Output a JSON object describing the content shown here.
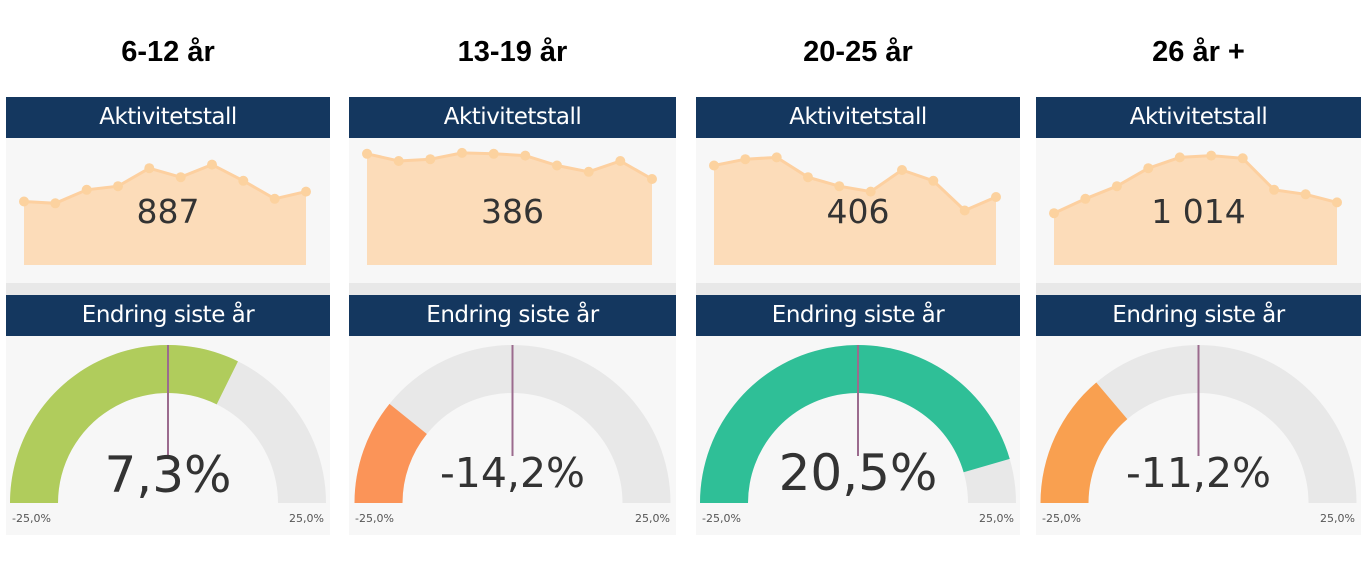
{
  "chart_data": [
    {
      "type": "gauge",
      "group_label": "6-12 år",
      "spark_title": "Aktivitetstall",
      "spark_value": "887",
      "spark_series": [
        0.35,
        0.33,
        0.48,
        0.52,
        0.72,
        0.62,
        0.76,
        0.58,
        0.38,
        0.46
      ],
      "gauge_title": "Endring siste år",
      "gauge_value": 7.3,
      "gauge_label": "7,3%",
      "gauge_min_label": "-25,0%",
      "gauge_max_label": "25,0%",
      "gauge_min": -25,
      "gauge_max": 25,
      "fill_color": "#b0cc5c"
    },
    {
      "type": "gauge",
      "group_label": "13-19 år",
      "spark_title": "Aktivitetstall",
      "spark_value": "386",
      "spark_series": [
        0.88,
        0.8,
        0.82,
        0.89,
        0.88,
        0.86,
        0.75,
        0.68,
        0.8,
        0.6
      ],
      "gauge_title": "Endring siste år",
      "gauge_value": -14.2,
      "gauge_label": "-14,2%",
      "gauge_min_label": "-25,0%",
      "gauge_max_label": "25,0%",
      "gauge_min": -25,
      "gauge_max": 25,
      "fill_color": "#fb9458"
    },
    {
      "type": "gauge",
      "group_label": "20-25 år",
      "spark_title": "Aktivitetstall",
      "spark_value": "406",
      "spark_series": [
        0.75,
        0.82,
        0.84,
        0.62,
        0.52,
        0.46,
        0.7,
        0.58,
        0.25,
        0.4
      ],
      "gauge_title": "Endring siste år",
      "gauge_value": 20.5,
      "gauge_label": "20,5%",
      "gauge_min_label": "-25,0%",
      "gauge_max_label": "25,0%",
      "gauge_min": -25,
      "gauge_max": 25,
      "fill_color": "#2fbf97"
    },
    {
      "type": "gauge",
      "group_label": "26 år +",
      "spark_title": "Aktivitetstall",
      "spark_value": "1 014",
      "spark_series": [
        0.22,
        0.38,
        0.52,
        0.72,
        0.84,
        0.86,
        0.83,
        0.48,
        0.43,
        0.34
      ],
      "gauge_title": "Endring siste år",
      "gauge_value": -11.2,
      "gauge_label": "-11,2%",
      "gauge_min_label": "-25,0%",
      "gauge_max_label": "25,0%",
      "gauge_min": -25,
      "gauge_max": 25,
      "fill_color": "#f9a050"
    }
  ]
}
